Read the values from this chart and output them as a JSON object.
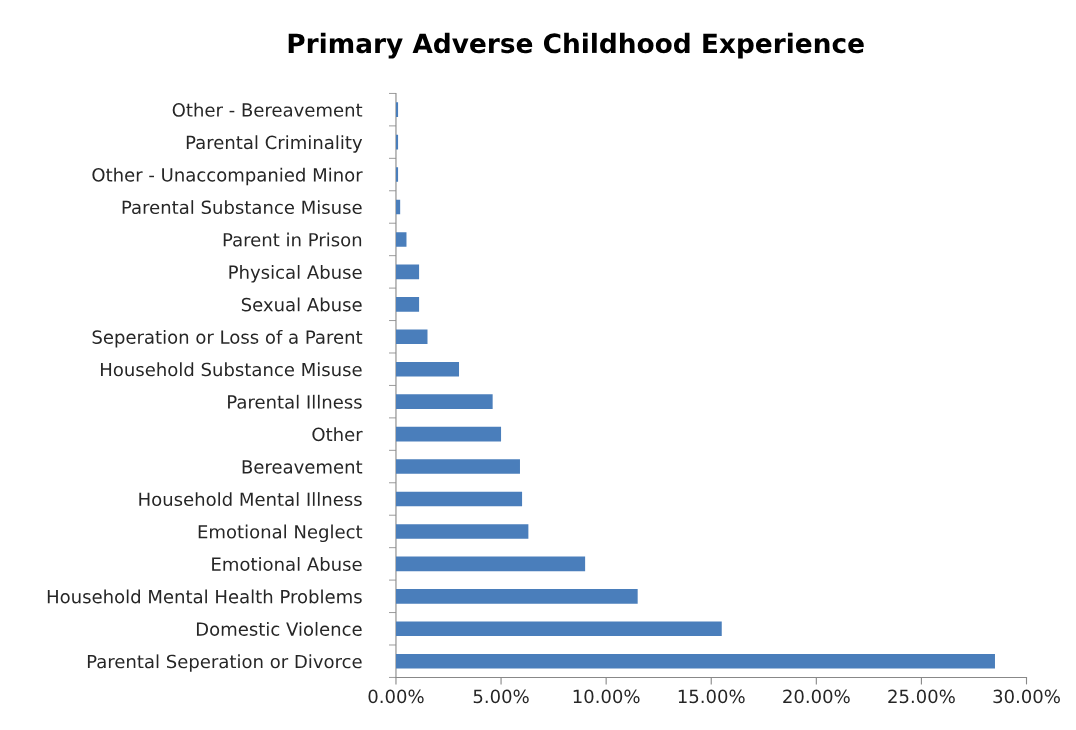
{
  "chart_data": {
    "type": "bar",
    "orientation": "horizontal",
    "title": "Primary Adverse Childhood Experience",
    "categories": [
      "Other - Bereavement",
      "Parental Criminality",
      "Other - Unaccompanied Minor",
      "Parental Substance Misuse",
      "Parent in Prison",
      "Physical Abuse",
      "Sexual Abuse",
      "Seperation or Loss of a Parent",
      "Household Substance Misuse",
      "Parental Illness",
      "Other",
      "Bereavement",
      "Household Mental Illness",
      "Emotional Neglect",
      "Emotional Abuse",
      "Household Mental Health Problems",
      "Domestic Violence",
      "Parental Seperation or Divorce"
    ],
    "values": [
      0.1,
      0.1,
      0.1,
      0.2,
      0.5,
      1.1,
      1.1,
      1.5,
      3.0,
      4.6,
      5.0,
      5.9,
      6.0,
      6.3,
      9.0,
      11.5,
      15.5,
      28.5
    ],
    "color": "#4a7ebb",
    "xlim": [
      0,
      30
    ],
    "xticks": [
      {
        "value": 0,
        "label": "0.00%"
      },
      {
        "value": 5,
        "label": "5.00%"
      },
      {
        "value": 10,
        "label": "10.00%"
      },
      {
        "value": 15,
        "label": "15.00%"
      },
      {
        "value": 20,
        "label": "20.00%"
      },
      {
        "value": 25,
        "label": "25.00%"
      },
      {
        "value": 30,
        "label": "30.00%"
      }
    ],
    "grid": false,
    "legend": false
  }
}
